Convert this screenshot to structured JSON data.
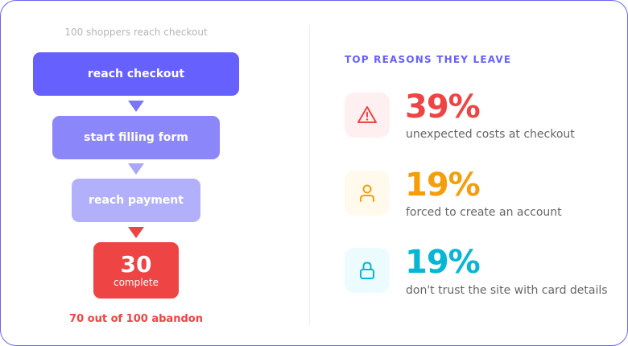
{
  "funnel": {
    "caption": "100 shoppers reach checkout",
    "steps": [
      {
        "label": "reach checkout",
        "color": "#6660fe"
      },
      {
        "label": "start filling form",
        "color": "#8b86f9"
      },
      {
        "label": "reach payment",
        "color": "#b3b0fb"
      }
    ],
    "result": {
      "value": "30",
      "label": "complete",
      "color": "#ef4444"
    },
    "footer": "70 out of 100 abandon"
  },
  "reasons": {
    "heading": "TOP REASONS THEY LEAVE",
    "items": [
      {
        "icon": "warning-triangle-icon",
        "percent": "39%",
        "text": "unexpected costs at checkout",
        "color": "#ef4444",
        "bg": "#fef0f0"
      },
      {
        "icon": "user-icon",
        "percent": "19%",
        "text": "forced to create an account",
        "color": "#f59e0b",
        "bg": "#fffaeb"
      },
      {
        "icon": "lock-icon",
        "percent": "19%",
        "text": "don't trust the site with card details",
        "color": "#06b6d4",
        "bg": "#ecfcfe"
      }
    ]
  }
}
